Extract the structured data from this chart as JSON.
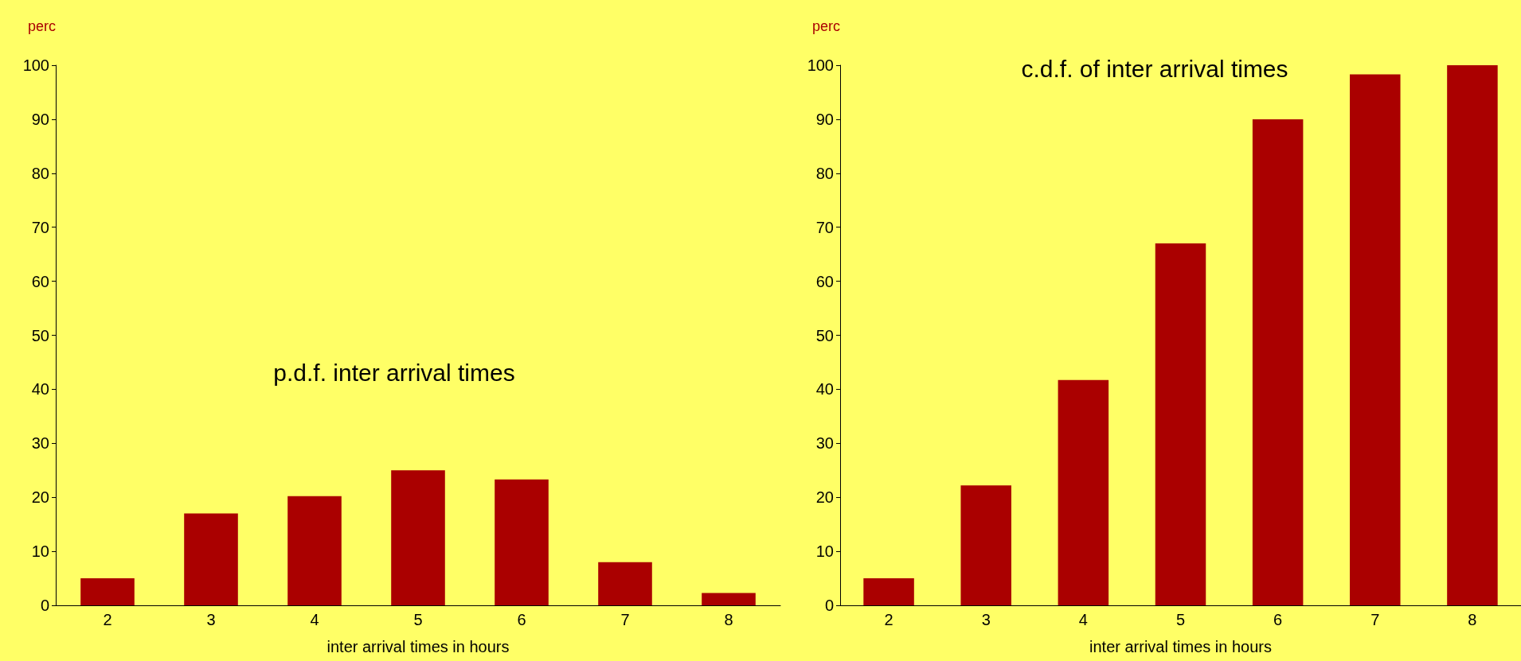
{
  "chart_data": [
    {
      "type": "bar",
      "title": "p.d.f. inter arrival times",
      "xlabel": "inter arrival times in hours",
      "ylabel": "perc",
      "categories": [
        "2",
        "3",
        "4",
        "5",
        "6",
        "7",
        "8"
      ],
      "values": [
        5,
        17,
        20.2,
        25,
        23.3,
        8,
        2.3
      ],
      "color": "#aa0000",
      "ylim": [
        0,
        100
      ],
      "yticks": [
        0,
        10,
        20,
        30,
        40,
        50,
        60,
        70,
        80,
        90,
        100
      ],
      "grid": false
    },
    {
      "type": "bar",
      "title": "c.d.f. of inter arrival times",
      "xlabel": "inter arrival times in hours",
      "ylabel": "perc",
      "categories": [
        "2",
        "3",
        "4",
        "5",
        "6",
        "7",
        "8"
      ],
      "values": [
        5,
        22.2,
        41.7,
        67,
        90,
        98.3,
        100
      ],
      "color": "#aa0000",
      "ylim": [
        0,
        100
      ],
      "yticks": [
        0,
        10,
        20,
        30,
        40,
        50,
        60,
        70,
        80,
        90,
        100
      ],
      "grid": false
    }
  ]
}
